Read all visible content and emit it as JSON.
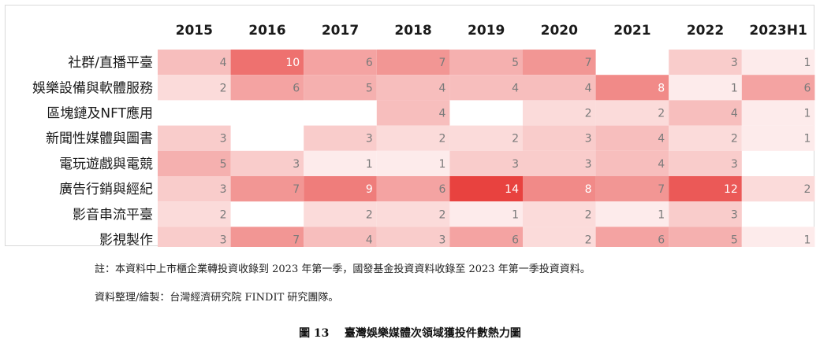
{
  "chart_data": {
    "type": "heatmap",
    "columns": [
      "2015",
      "2016",
      "2017",
      "2018",
      "2019",
      "2020",
      "2021",
      "2022",
      "2023H1"
    ],
    "rows": [
      "社群/直播平臺",
      "娛樂設備與軟體服務",
      "區塊鏈及NFT應用",
      "新聞性媒體與圖書",
      "電玩遊戲與電競",
      "廣告行銷與經紀",
      "影音串流平臺",
      "影視製作"
    ],
    "values": [
      [
        4,
        10,
        6,
        7,
        5,
        7,
        null,
        3,
        1
      ],
      [
        2,
        6,
        5,
        4,
        4,
        4,
        8,
        1,
        6
      ],
      [
        null,
        null,
        null,
        4,
        null,
        2,
        2,
        4,
        1
      ],
      [
        3,
        null,
        3,
        2,
        2,
        3,
        4,
        2,
        1
      ],
      [
        5,
        3,
        1,
        1,
        3,
        3,
        4,
        3,
        null
      ],
      [
        3,
        7,
        9,
        6,
        14,
        8,
        7,
        12,
        2
      ],
      [
        2,
        null,
        2,
        2,
        1,
        2,
        1,
        3,
        null
      ],
      [
        3,
        7,
        4,
        3,
        6,
        2,
        6,
        5,
        1
      ]
    ],
    "color_scale": {
      "min_color": "#ffffff",
      "max_color": "#e8423f",
      "min_value": 0,
      "max_value": 14
    },
    "legend": "none"
  },
  "notes": {
    "line1": "註：本資料中上市櫃企業轉投資收錄到 2023 年第一季，國發基金投資資料收錄至 2023 年第一季投資資料。",
    "line2": "資料整理/繪製：台灣經濟研究院 FINDIT 研究團隊。"
  },
  "caption": "圖 13    臺灣娛樂媒體次領域獲投件數熱力圖"
}
